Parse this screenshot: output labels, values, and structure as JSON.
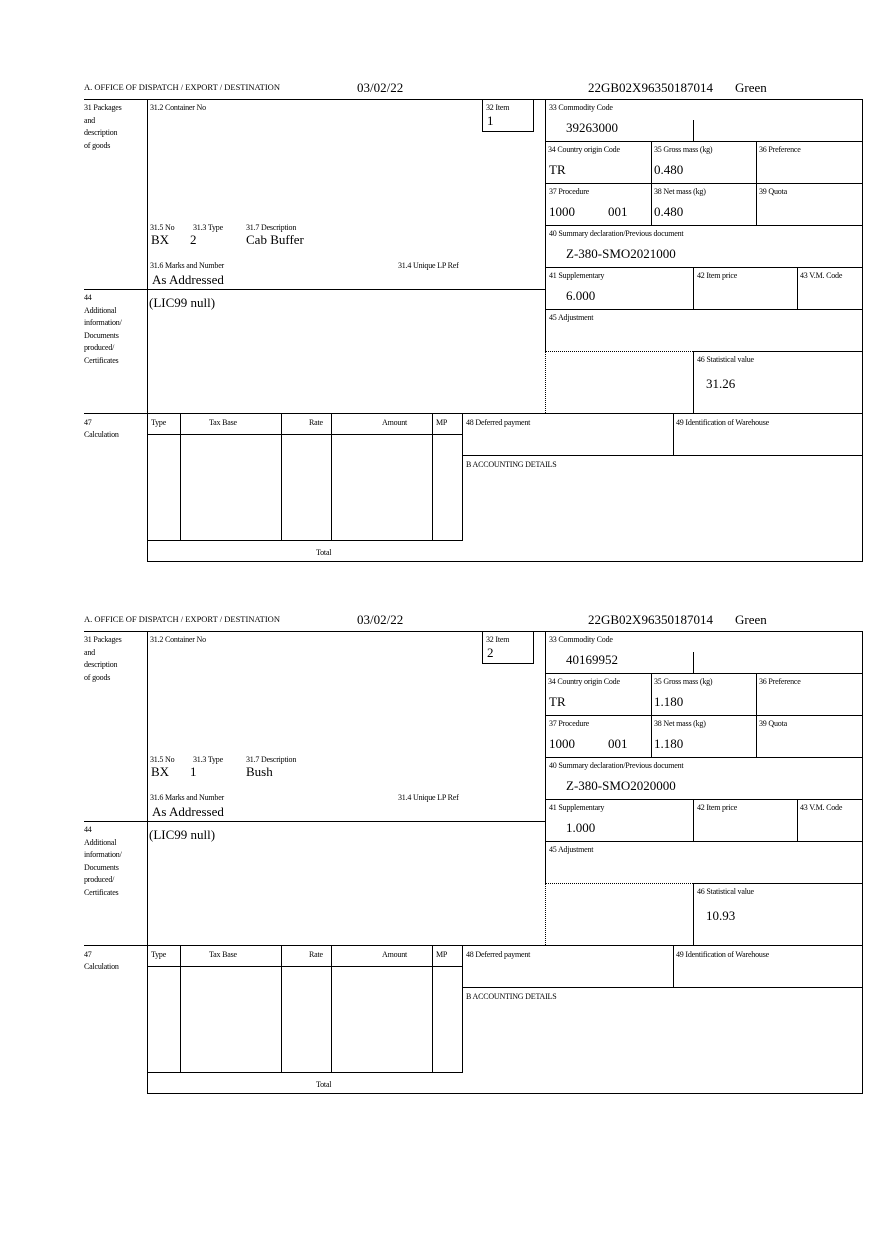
{
  "labels": {
    "office": "A.  OFFICE OF DISPATCH / EXPORT / DESTINATION",
    "packages": [
      "31 Packages",
      "and",
      "description",
      "of goods"
    ],
    "container_no": "31.2 Container No",
    "item": "32 Item",
    "no": "31.5 No",
    "type": "31.3 Type",
    "description": "31.7 Description",
    "marks": "31.6 Marks and Number",
    "unique_lp_ref": "31.4 Unique LP Ref",
    "commodity_code": "33 Commodity Code",
    "country_origin": "34 Country origin Code",
    "gross_mass": "35 Gross mass (kg)",
    "preference": "36 Preference",
    "procedure": "37 Procedure",
    "net_mass": "38 Net mass (kg)",
    "quota": "39 Quota",
    "summary_declaration": "40 Summary declaration/Previous document",
    "supplementary": "41 Supplementary",
    "item_price": "42 Item price",
    "vm_code": "43 V.M. Code",
    "additional_info": [
      "44",
      "Additional",
      "information/",
      "Documents",
      "produced/",
      "Certificates"
    ],
    "adjustment": "45 Adjustment",
    "statistical_value": "46 Statistical value",
    "calculation": [
      "47",
      "Calculation"
    ],
    "calc_columns": [
      "Type",
      "Tax Base",
      "Rate",
      "Amount",
      "MP"
    ],
    "total": "Total",
    "deferred_payment": "48 Deferred payment",
    "warehouse_id": "49 Identification of Warehouse",
    "accounting": "B ACCOUNTING DETAILS"
  },
  "items": [
    {
      "date": "03/02/22",
      "reference": "22GB02X96350187014",
      "route": "Green",
      "item_no": "1",
      "pkg_kind": "BX",
      "pkg_count": "2",
      "description": "Cab Buffer",
      "marks": "As Addressed",
      "commodity_code": "39263000",
      "country_origin": "TR",
      "gross_mass": "0.480",
      "procedure": "1000",
      "procedure_suffix": "001",
      "net_mass": "0.480",
      "summary_declaration": "Z-380-SMO2021000",
      "supplementary": "6.000",
      "additional_info": "(LIC99 null)",
      "statistical_value": "31.26"
    },
    {
      "date": "03/02/22",
      "reference": "22GB02X96350187014",
      "route": "Green",
      "item_no": "2",
      "pkg_kind": "BX",
      "pkg_count": "1",
      "description": "Bush",
      "marks": "As Addressed",
      "commodity_code": "40169952",
      "country_origin": "TR",
      "gross_mass": "1.180",
      "procedure": "1000",
      "procedure_suffix": "001",
      "net_mass": "1.180",
      "summary_declaration": "Z-380-SMO2020000",
      "supplementary": "1.000",
      "additional_info": "(LIC99 null)",
      "statistical_value": "10.93"
    }
  ]
}
